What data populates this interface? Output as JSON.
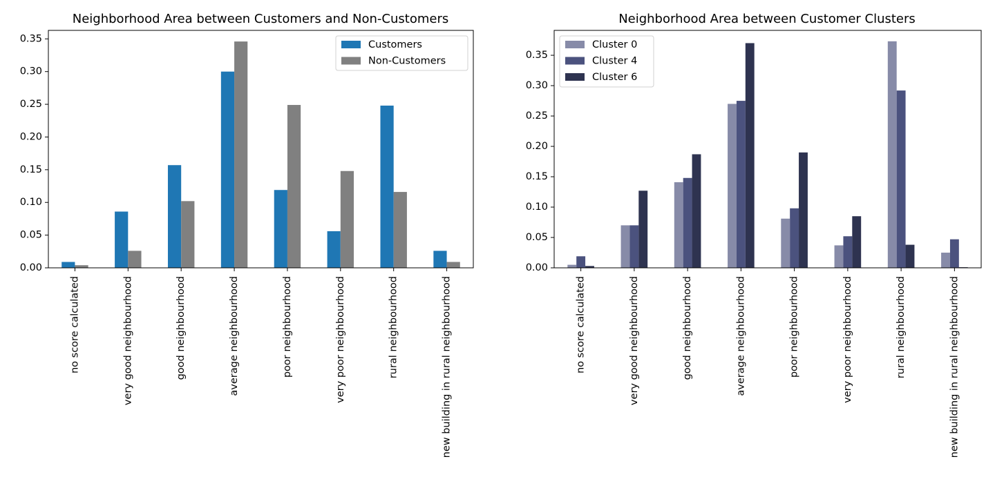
{
  "chart_data": [
    {
      "type": "bar",
      "title": "Neighborhood Area between Customers and Non-Customers",
      "categories": [
        "no score calculated",
        "very good neighbourhood",
        "good neighbourhood",
        "average neighbourhood",
        "poor neighbourhood",
        "very poor neighbourhood",
        "rural neighbourhood",
        "new building in rural neighbourhood"
      ],
      "series": [
        {
          "name": "Customers",
          "color": "#1f77b4",
          "values": [
            0.009,
            0.086,
            0.157,
            0.3,
            0.119,
            0.056,
            0.248,
            0.026
          ]
        },
        {
          "name": "Non-Customers",
          "color": "#808080",
          "values": [
            0.004,
            0.026,
            0.102,
            0.346,
            0.249,
            0.148,
            0.116,
            0.009
          ]
        }
      ],
      "yticks": [
        "0.00",
        "0.05",
        "0.10",
        "0.15",
        "0.20",
        "0.25",
        "0.30",
        "0.35"
      ],
      "ylim": [
        0,
        0.363
      ],
      "legend": "top-right",
      "grid": false
    },
    {
      "type": "bar",
      "title": "Neighborhood Area between Customer Clusters",
      "categories": [
        "no score calculated",
        "very good neighbourhood",
        "good neighbourhood",
        "average neighbourhood",
        "poor neighbourhood",
        "very poor neighbourhood",
        "rural neighbourhood",
        "new building in rural neighbourhood"
      ],
      "series": [
        {
          "name": "Cluster 0",
          "color": "#878ba8",
          "values": [
            0.005,
            0.07,
            0.141,
            0.27,
            0.081,
            0.037,
            0.373,
            0.025
          ]
        },
        {
          "name": "Cluster 4",
          "color": "#4b527e",
          "values": [
            0.019,
            0.07,
            0.148,
            0.275,
            0.098,
            0.052,
            0.292,
            0.047
          ]
        },
        {
          "name": "Cluster 6",
          "color": "#2e3350",
          "values": [
            0.003,
            0.127,
            0.187,
            0.37,
            0.19,
            0.085,
            0.038,
            0.001
          ]
        }
      ],
      "yticks": [
        "0.00",
        "0.05",
        "0.10",
        "0.15",
        "0.20",
        "0.25",
        "0.30",
        "0.35"
      ],
      "ylim": [
        0,
        0.391
      ],
      "legend": "top-left",
      "grid": false
    }
  ]
}
